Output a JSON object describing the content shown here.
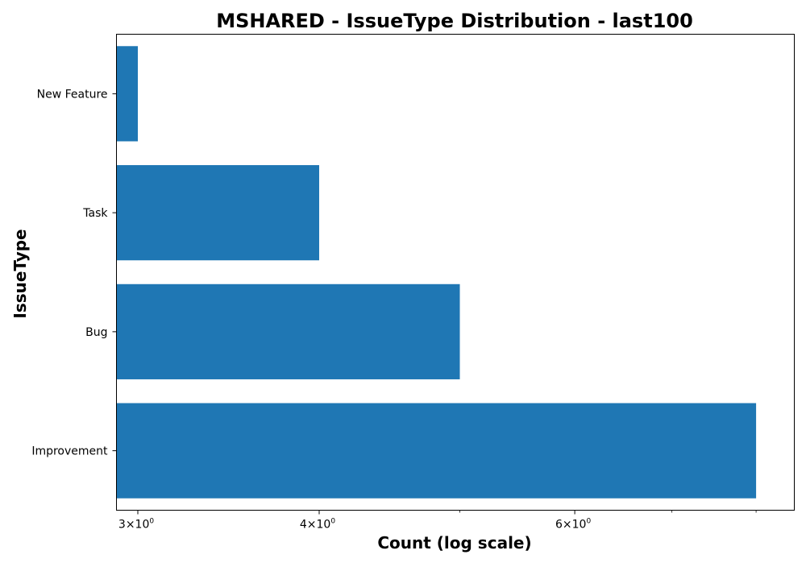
{
  "chart_data": {
    "type": "bar",
    "orientation": "horizontal",
    "title": "MSHARED - IssueType Distribution - last100",
    "xlabel": "Count (log scale)",
    "ylabel": "IssueType",
    "x_scale": "log",
    "xlim": [
      2.9,
      8.5
    ],
    "categories": [
      "New Feature",
      "Task",
      "Bug",
      "Improvement"
    ],
    "values": [
      3,
      4,
      5,
      8
    ],
    "x_ticks": [
      {
        "value": 3,
        "base": "3",
        "exp": "0"
      },
      {
        "value": 4,
        "base": "4",
        "exp": "0"
      },
      {
        "value": 6,
        "base": "6",
        "exp": "0"
      }
    ],
    "x_minor_ticks": [
      5,
      7,
      8
    ],
    "grid": false,
    "bar_color": "#1f77b4"
  }
}
